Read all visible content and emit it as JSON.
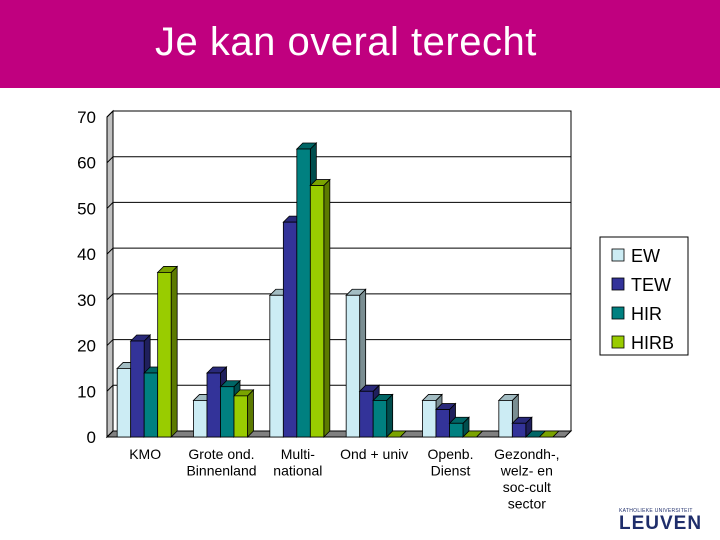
{
  "slide": {
    "title": "Je kan overal terecht",
    "title_bar_color": "#C0007F"
  },
  "logo": {
    "top_text": "KATHOLIEKE UNIVERSITEIT",
    "main_text": "LEUVEN"
  },
  "chart_data": {
    "type": "bar",
    "style": "3d",
    "categories": [
      [
        "KMO"
      ],
      [
        "Grote ond.",
        "Binnenland"
      ],
      [
        "Multi-",
        "national"
      ],
      [
        "Ond + univ"
      ],
      [
        "Openb.",
        "Dienst"
      ],
      [
        "Gezondh-,",
        "welz- en",
        "soc-cult",
        "sector"
      ]
    ],
    "series": [
      {
        "name": "EW",
        "color": "#CCECF4",
        "values": [
          15,
          8,
          31,
          31,
          8,
          8
        ]
      },
      {
        "name": "TEW",
        "color": "#333399",
        "values": [
          21,
          14,
          47,
          10,
          6,
          3
        ]
      },
      {
        "name": "HIR",
        "color": "#008080",
        "values": [
          14,
          11,
          63,
          8,
          3,
          0
        ]
      },
      {
        "name": "HIRB",
        "color": "#99CC00",
        "values": [
          36,
          9,
          55,
          0,
          0,
          0
        ]
      }
    ],
    "ylim": [
      0,
      70
    ],
    "yticks": [
      0,
      10,
      20,
      30,
      40,
      50,
      60,
      70
    ],
    "grid": true,
    "legend_position": "right"
  }
}
